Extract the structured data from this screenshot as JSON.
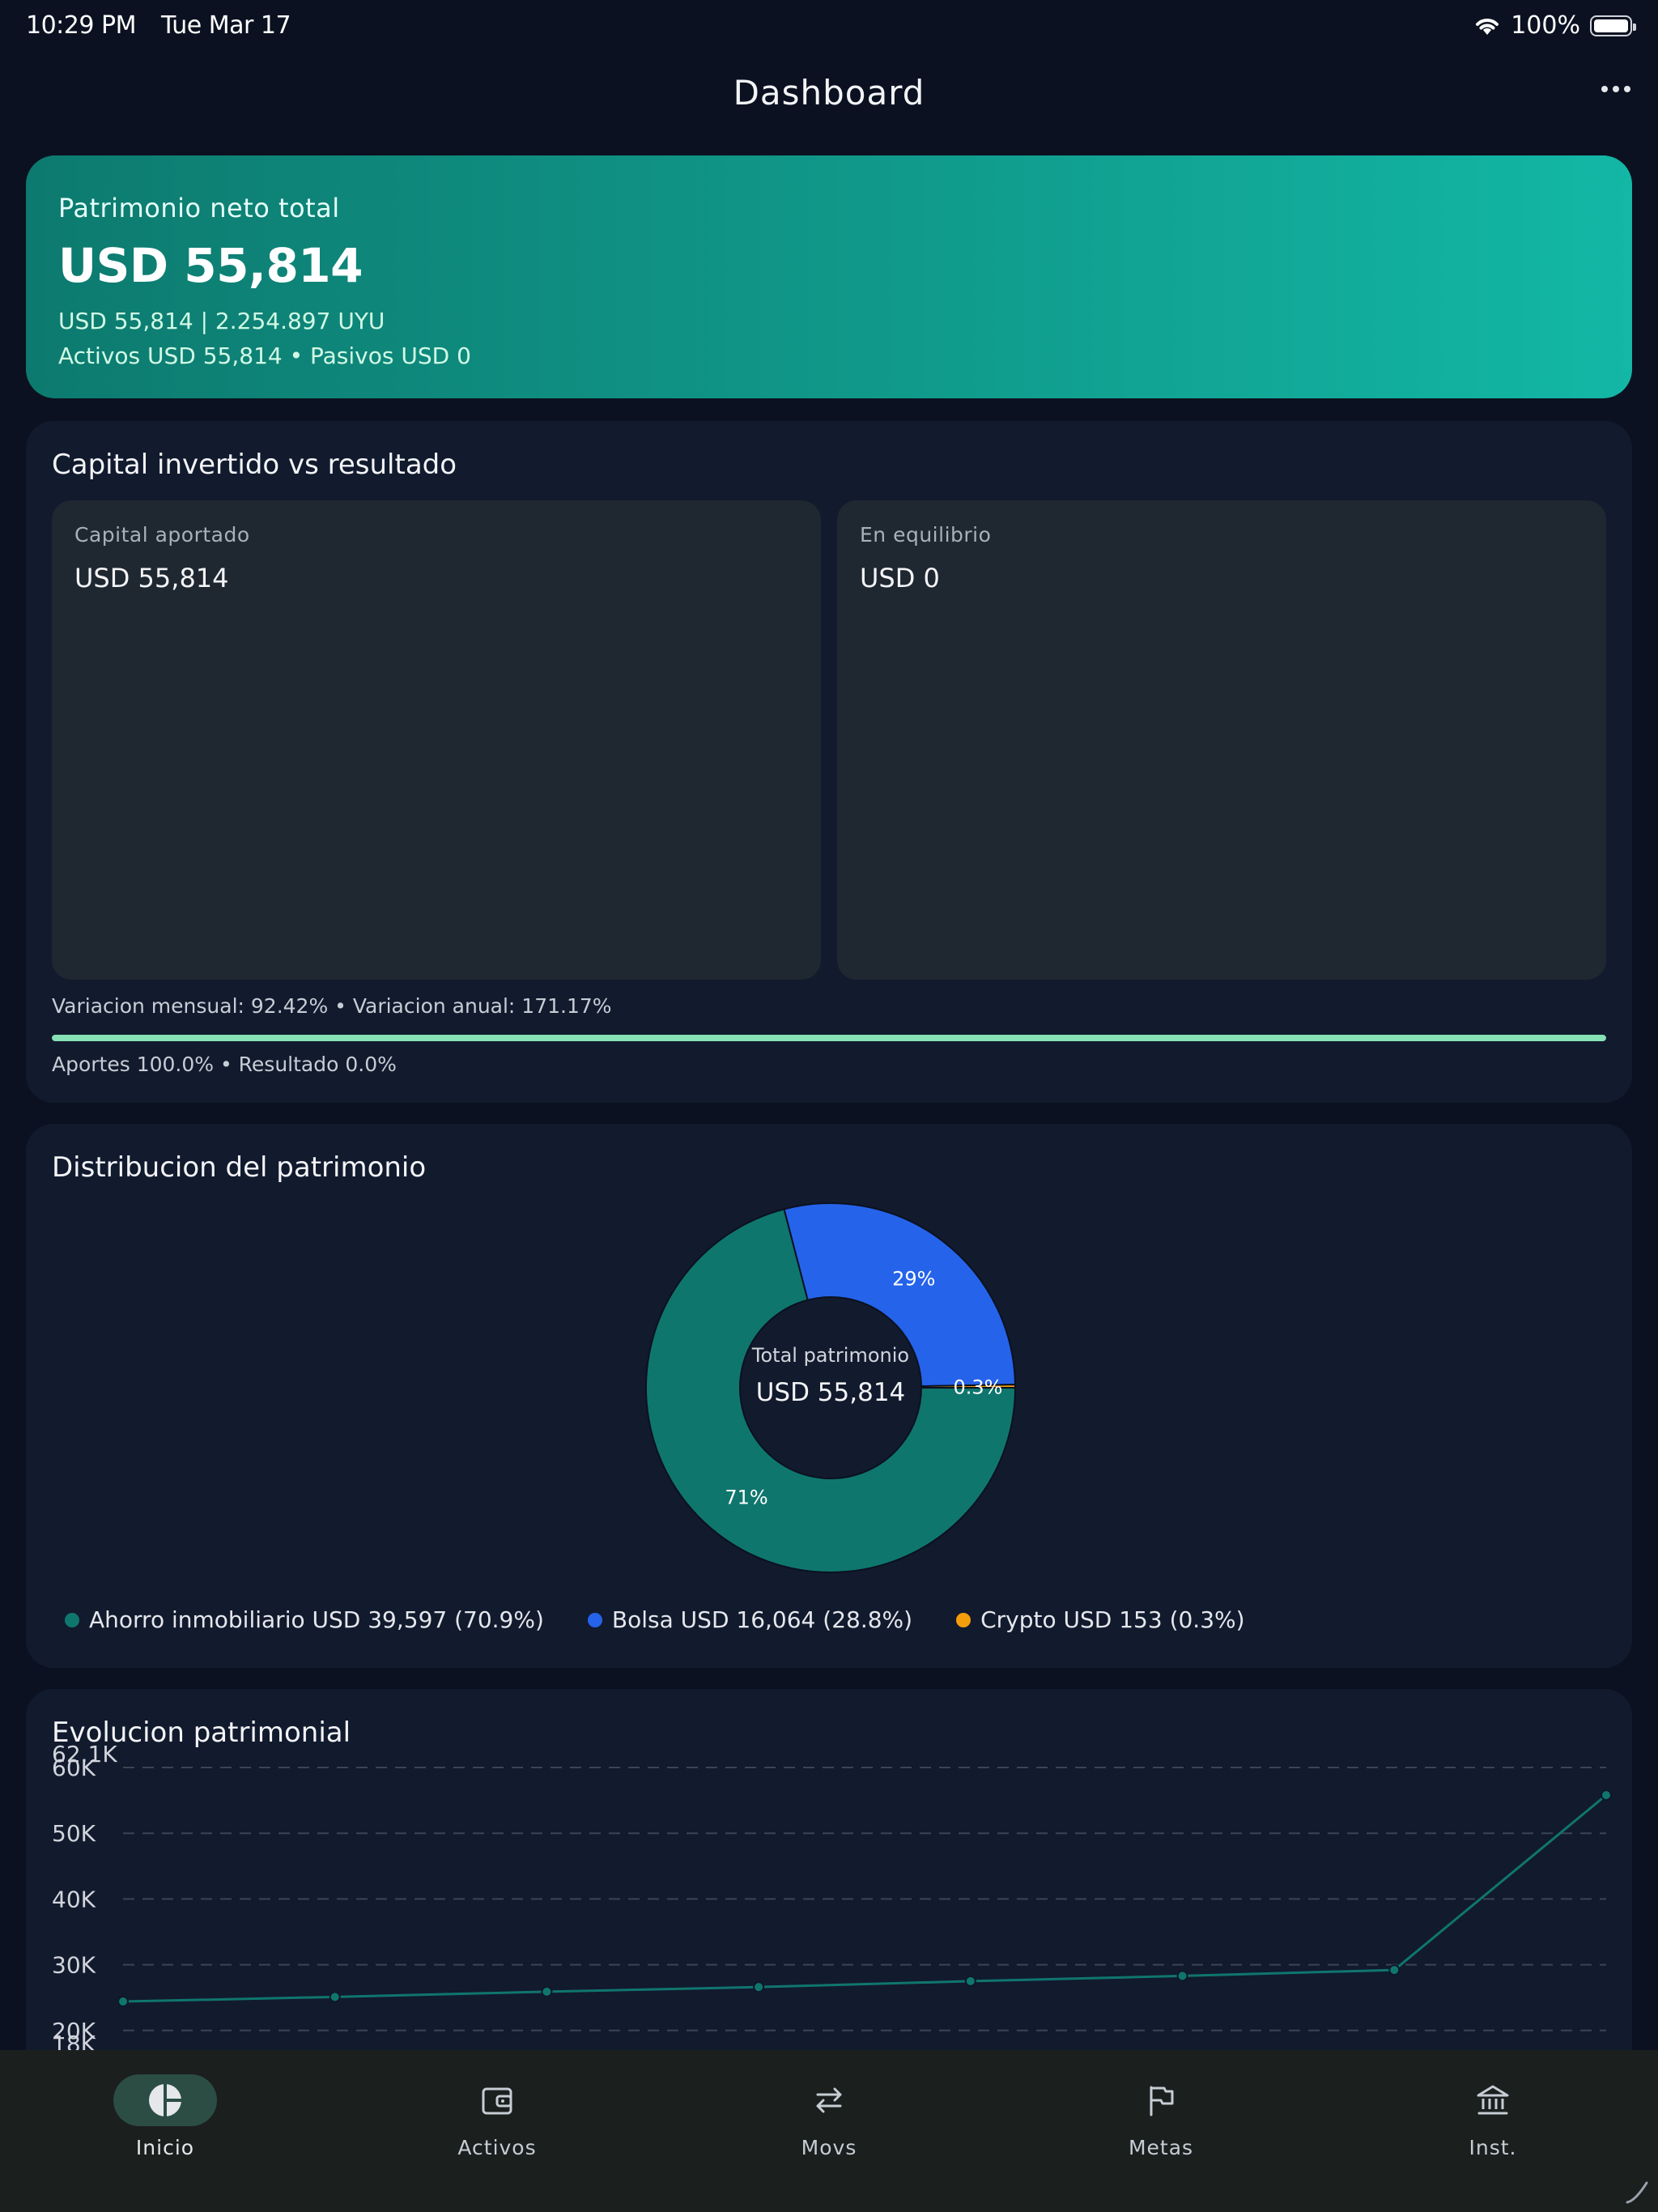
{
  "status_bar": {
    "time": "10:29 PM",
    "date": "Tue Mar 17",
    "battery": "100%"
  },
  "nav": {
    "title": "Dashboard"
  },
  "hero": {
    "label": "Patrimonio neto total",
    "value": "USD 55,814",
    "sub1": "USD 55,814 | 2.254.897 UYU",
    "sub2": "Activos USD 55,814 • Pasivos USD 0"
  },
  "capital": {
    "title": "Capital invertido vs resultado",
    "left_label": "Capital aportado",
    "left_value": "USD 55,814",
    "right_label": "En equilibrio",
    "right_value": "USD 0",
    "variation": "Variacion mensual: 92.42% • Variacion anual: 171.17%",
    "progress": 1.0,
    "caption": "Aportes 100.0% • Resultado 0.0%"
  },
  "distribution": {
    "title": "Distribucion del patrimonio",
    "center_label": "Total patrimonio",
    "center_value": "USD 55,814",
    "chart_data": {
      "type": "pie",
      "donut": true,
      "slices": [
        {
          "name": "Ahorro inmobiliario",
          "value": 39597,
          "label": "71%",
          "color": "#0f766e"
        },
        {
          "name": "Bolsa",
          "value": 16064,
          "label": "29%",
          "color": "#2563eb"
        },
        {
          "name": "Crypto",
          "value": 153,
          "label": "0.3%",
          "color": "#f59e0b"
        }
      ]
    },
    "legend": [
      {
        "text": "Ahorro inmobiliario USD 39,597 (70.9%)",
        "color": "#0f766e"
      },
      {
        "text": "Bolsa USD 16,064 (28.8%)",
        "color": "#2563eb"
      },
      {
        "text": "Crypto USD 153 (0.3%)",
        "color": "#f59e0b"
      }
    ]
  },
  "evolution": {
    "title": "Evolucion patrimonial",
    "chart_data": {
      "type": "line",
      "y_ticks": [
        20000,
        30000,
        40000,
        50000,
        60000
      ],
      "y_tick_labels": [
        "20K",
        "30K",
        "40K",
        "50K",
        "60K"
      ],
      "ylim": [
        18000,
        62100
      ],
      "ylim_labels": [
        "18K",
        "62.1K"
      ],
      "grid": true,
      "series": [
        {
          "values": [
            24400,
            25100,
            25900,
            26600,
            27500,
            28300,
            29200,
            55800
          ],
          "color": "#0f766e"
        }
      ]
    }
  },
  "tab_bar": {
    "items": [
      {
        "label": "Inicio",
        "icon": "pie-chart-icon",
        "active": true
      },
      {
        "label": "Activos",
        "icon": "wallet-icon",
        "active": false
      },
      {
        "label": "Movs",
        "icon": "transfer-arrows-icon",
        "active": false
      },
      {
        "label": "Metas",
        "icon": "flag-icon",
        "active": false
      },
      {
        "label": "Inst.",
        "icon": "bank-icon",
        "active": false
      }
    ]
  }
}
